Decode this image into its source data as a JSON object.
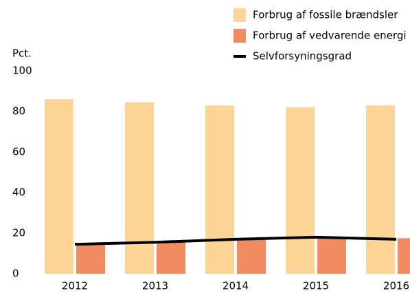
{
  "chart_data": {
    "type": "bar",
    "ylabel": "Pct.",
    "categories": [
      "2012",
      "2013",
      "2014",
      "2015",
      "2016"
    ],
    "series": [
      {
        "name": "Forbrug af fossile brændsler",
        "color": "#fdd596",
        "type": "bar",
        "values": [
          86,
          84.5,
          83,
          82,
          83
        ]
      },
      {
        "name": "Forbrug af vedvarende energi",
        "color": "#f28b62",
        "type": "bar",
        "values": [
          15,
          15.5,
          17,
          17.5,
          17.5
        ]
      },
      {
        "name": "Selvforsyningsgrad",
        "color": "#000000",
        "type": "line",
        "values": [
          14.5,
          15.5,
          17,
          18,
          17
        ]
      }
    ],
    "ylim": [
      0,
      100
    ],
    "yticks": [
      0,
      20,
      40,
      60,
      80,
      100
    ],
    "grid": false,
    "legend": "top-right"
  }
}
